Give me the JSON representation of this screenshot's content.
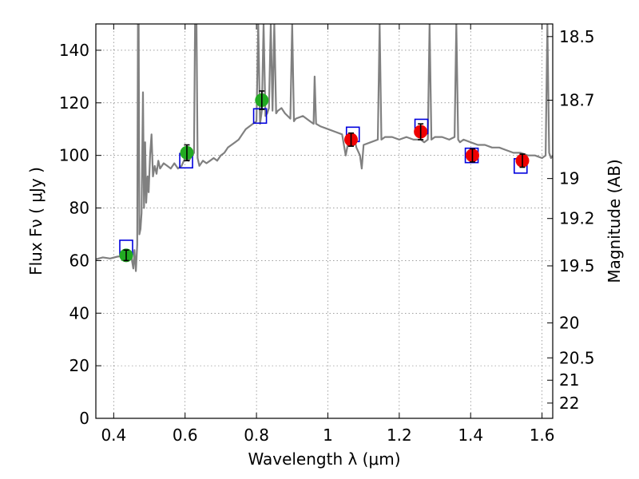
{
  "chart_data": {
    "type": "scatter",
    "title": "",
    "xlabel": "Wavelength  λ (μm)",
    "ylabel": "Flux  Fν  ( μJy )",
    "ylabel_right": "Magnitude (AB)",
    "xlim": [
      0.35,
      1.63
    ],
    "ylim": [
      0,
      150
    ],
    "grid": true,
    "x_ticks": [
      0.4,
      0.6,
      0.8,
      1.0,
      1.2,
      1.4,
      1.6
    ],
    "x_tick_labels": [
      "0.4",
      "0.6",
      "0.8",
      "1",
      "1.2",
      "1.4",
      "1.6"
    ],
    "y_ticks": [
      0,
      20,
      40,
      60,
      80,
      100,
      120,
      140
    ],
    "y_tick_labels": [
      "0",
      "20",
      "40",
      "60",
      "80",
      "100",
      "120",
      "140"
    ],
    "right_ticks": [
      {
        "label": "18.5",
        "flux": 145.2
      },
      {
        "label": "18.7",
        "flux": 121.0
      },
      {
        "label": "19",
        "flux": 91.2
      },
      {
        "label": "19.2",
        "flux": 76.0
      },
      {
        "label": "19.5",
        "flux": 58.0
      },
      {
        "label": "20",
        "flux": 36.3
      },
      {
        "label": "20.5",
        "flux": 23.0
      },
      {
        "label": "21",
        "flux": 14.5
      },
      {
        "label": "22",
        "flux": 5.8
      }
    ],
    "series": [
      {
        "kind": "spectrum",
        "color": "#808080",
        "points": [
          [
            0.35,
            60.5
          ],
          [
            0.37,
            61.2
          ],
          [
            0.39,
            60.8
          ],
          [
            0.41,
            61.5
          ],
          [
            0.43,
            61.8
          ],
          [
            0.445,
            62.5
          ],
          [
            0.45,
            61
          ],
          [
            0.455,
            57
          ],
          [
            0.458,
            64
          ],
          [
            0.462,
            56
          ],
          [
            0.466,
            66
          ],
          [
            0.468,
            150
          ],
          [
            0.47,
            150
          ],
          [
            0.472,
            70
          ],
          [
            0.475,
            72
          ],
          [
            0.478,
            78
          ],
          [
            0.482,
            124
          ],
          [
            0.485,
            80
          ],
          [
            0.488,
            105
          ],
          [
            0.491,
            82
          ],
          [
            0.495,
            92
          ],
          [
            0.498,
            86
          ],
          [
            0.502,
            100
          ],
          [
            0.506,
            108
          ],
          [
            0.51,
            92
          ],
          [
            0.515,
            96
          ],
          [
            0.52,
            93
          ],
          [
            0.525,
            98
          ],
          [
            0.53,
            95
          ],
          [
            0.54,
            97
          ],
          [
            0.55,
            96
          ],
          [
            0.56,
            95
          ],
          [
            0.57,
            97
          ],
          [
            0.58,
            95
          ],
          [
            0.59,
            96
          ],
          [
            0.6,
            99
          ],
          [
            0.61,
            98
          ],
          [
            0.62,
            100
          ],
          [
            0.625,
            101
          ],
          [
            0.628,
            150
          ],
          [
            0.632,
            150
          ],
          [
            0.635,
            99
          ],
          [
            0.64,
            96
          ],
          [
            0.65,
            98
          ],
          [
            0.66,
            97
          ],
          [
            0.67,
            98
          ],
          [
            0.68,
            99
          ],
          [
            0.69,
            98
          ],
          [
            0.7,
            100
          ],
          [
            0.71,
            101
          ],
          [
            0.72,
            103
          ],
          [
            0.73,
            104
          ],
          [
            0.74,
            105
          ],
          [
            0.75,
            106
          ],
          [
            0.76,
            108
          ],
          [
            0.77,
            110
          ],
          [
            0.78,
            111
          ],
          [
            0.79,
            112
          ],
          [
            0.8,
            113
          ],
          [
            0.805,
            150
          ],
          [
            0.81,
            112
          ],
          [
            0.815,
            117
          ],
          [
            0.82,
            150
          ],
          [
            0.825,
            115
          ],
          [
            0.83,
            116
          ],
          [
            0.835,
            118
          ],
          [
            0.84,
            150
          ],
          [
            0.845,
            117
          ],
          [
            0.85,
            150
          ],
          [
            0.855,
            116
          ],
          [
            0.86,
            117
          ],
          [
            0.87,
            118
          ],
          [
            0.88,
            116
          ],
          [
            0.895,
            114
          ],
          [
            0.9,
            150
          ],
          [
            0.905,
            113
          ],
          [
            0.91,
            114
          ],
          [
            0.93,
            115
          ],
          [
            0.95,
            113
          ],
          [
            0.96,
            112
          ],
          [
            0.963,
            130
          ],
          [
            0.967,
            112
          ],
          [
            0.98,
            111
          ],
          [
            1.0,
            110
          ],
          [
            1.02,
            109
          ],
          [
            1.04,
            108
          ],
          [
            1.05,
            100
          ],
          [
            1.06,
            107
          ],
          [
            1.075,
            106
          ],
          [
            1.08,
            103
          ],
          [
            1.09,
            100
          ],
          [
            1.095,
            95
          ],
          [
            1.1,
            104
          ],
          [
            1.12,
            105
          ],
          [
            1.14,
            106
          ],
          [
            1.145,
            150
          ],
          [
            1.15,
            106
          ],
          [
            1.16,
            107
          ],
          [
            1.18,
            107
          ],
          [
            1.2,
            106
          ],
          [
            1.22,
            107
          ],
          [
            1.24,
            106
          ],
          [
            1.26,
            106
          ],
          [
            1.27,
            105
          ],
          [
            1.28,
            106
          ],
          [
            1.285,
            150
          ],
          [
            1.29,
            106
          ],
          [
            1.3,
            107
          ],
          [
            1.32,
            107
          ],
          [
            1.34,
            106
          ],
          [
            1.355,
            107
          ],
          [
            1.36,
            150
          ],
          [
            1.365,
            106
          ],
          [
            1.37,
            105
          ],
          [
            1.38,
            106
          ],
          [
            1.4,
            105
          ],
          [
            1.42,
            104
          ],
          [
            1.44,
            104
          ],
          [
            1.46,
            103
          ],
          [
            1.48,
            103
          ],
          [
            1.5,
            102
          ],
          [
            1.52,
            101
          ],
          [
            1.54,
            101
          ],
          [
            1.56,
            100
          ],
          [
            1.58,
            100
          ],
          [
            1.6,
            99
          ],
          [
            1.61,
            100
          ],
          [
            1.615,
            150
          ],
          [
            1.62,
            101
          ],
          [
            1.625,
            99
          ],
          [
            1.63,
            100
          ]
        ]
      },
      {
        "kind": "model_boxes",
        "color": "#0000dd",
        "points": [
          [
            0.435,
            65
          ],
          [
            0.603,
            98
          ],
          [
            0.81,
            115
          ],
          [
            1.07,
            108
          ],
          [
            1.262,
            111
          ],
          [
            1.403,
            100
          ],
          [
            1.54,
            96
          ]
        ]
      },
      {
        "kind": "observed",
        "color": "#22aa22",
        "points": [
          [
            0.435,
            62,
            2
          ],
          [
            0.605,
            101,
            3
          ],
          [
            0.815,
            121,
            3.5
          ]
        ]
      },
      {
        "kind": "observed",
        "color": "#ee0000",
        "points": [
          [
            1.065,
            106,
            2.5
          ],
          [
            1.26,
            109,
            3
          ],
          [
            1.405,
            100,
            2.5
          ],
          [
            1.545,
            98,
            2.5
          ]
        ]
      }
    ]
  }
}
